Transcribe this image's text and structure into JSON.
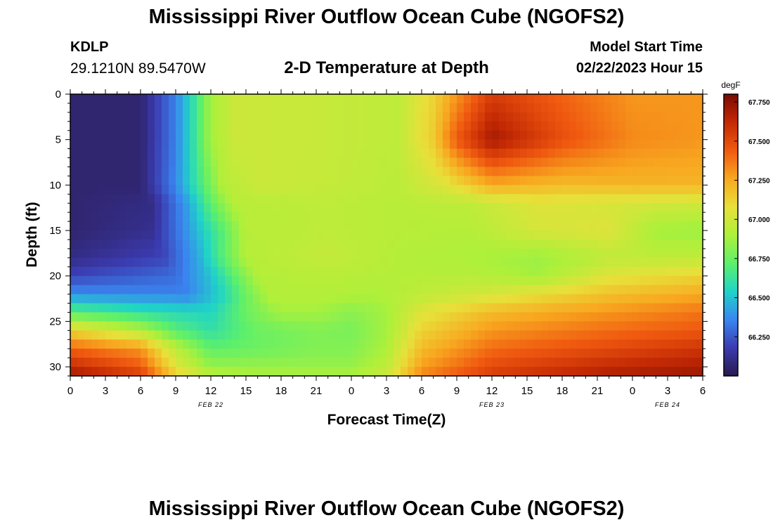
{
  "header": {
    "title": "Mississippi River Outflow Ocean Cube (NGOFS2)",
    "station_id": "KDLP",
    "station_coords": "29.1210N  89.5470W",
    "subtitle": "2-D Temperature at Depth",
    "model_start_label": "Model Start Time",
    "model_start_value": "02/22/2023 Hour 15"
  },
  "footer": {
    "title_repeat": "Mississippi River Outflow Ocean Cube (NGOFS2)"
  },
  "chart_data": {
    "type": "heatmap",
    "xlabel": "Forecast Time(Z)",
    "ylabel": "Depth (ft)",
    "x_unit": "hours from start",
    "xlim": [
      0,
      54
    ],
    "ylim": [
      0,
      31
    ],
    "y_inverted": true,
    "x_ticks": [
      {
        "h": 0,
        "label": "0"
      },
      {
        "h": 3,
        "label": "3"
      },
      {
        "h": 6,
        "label": "6"
      },
      {
        "h": 9,
        "label": "9"
      },
      {
        "h": 12,
        "label": "12"
      },
      {
        "h": 15,
        "label": "15"
      },
      {
        "h": 18,
        "label": "18"
      },
      {
        "h": 21,
        "label": "21"
      },
      {
        "h": 24,
        "label": "0"
      },
      {
        "h": 27,
        "label": "3"
      },
      {
        "h": 30,
        "label": "6"
      },
      {
        "h": 33,
        "label": "9"
      },
      {
        "h": 36,
        "label": "12"
      },
      {
        "h": 39,
        "label": "15"
      },
      {
        "h": 42,
        "label": "18"
      },
      {
        "h": 45,
        "label": "21"
      },
      {
        "h": 48,
        "label": "0"
      },
      {
        "h": 51,
        "label": "3"
      },
      {
        "h": 54,
        "label": "6"
      }
    ],
    "date_labels": [
      {
        "h": 12,
        "label": "FEB 22"
      },
      {
        "h": 36,
        "label": "FEB 23"
      },
      {
        "h": 51,
        "label": "FEB 24"
      }
    ],
    "y_ticks": [
      0,
      5,
      10,
      15,
      20,
      25,
      30
    ],
    "colorbar": {
      "unit": "degF",
      "min": 66.0,
      "max": 67.8,
      "tick_values": [
        66.25,
        66.5,
        66.75,
        67.0,
        67.25,
        67.5,
        67.75
      ],
      "tick_labels": [
        "66.250",
        "66.500",
        "66.750",
        "67.000",
        "67.250",
        "67.500",
        "67.750"
      ],
      "colors": [
        "#2a1a4e",
        "#3b3bb0",
        "#3a86f0",
        "#1fd4c8",
        "#5ef06a",
        "#aef03a",
        "#e8e03a",
        "#f8a820",
        "#f05a10",
        "#c42a04",
        "#7a0a02"
      ]
    },
    "grid_points": [
      [
        0,
        0,
        66.06
      ],
      [
        6,
        0,
        66.06
      ],
      [
        9,
        0,
        66.35
      ],
      [
        10.5,
        0,
        66.6
      ],
      [
        12,
        0,
        66.88
      ],
      [
        14,
        0,
        66.99
      ],
      [
        20,
        0,
        66.98
      ],
      [
        28,
        0,
        66.95
      ],
      [
        31,
        0,
        67.12
      ],
      [
        33,
        0,
        67.3
      ],
      [
        36,
        0,
        67.55
      ],
      [
        42,
        0,
        67.42
      ],
      [
        48,
        0,
        67.3
      ],
      [
        54,
        0,
        67.3
      ],
      [
        0,
        5,
        66.06
      ],
      [
        6,
        5,
        66.06
      ],
      [
        9,
        5,
        66.35
      ],
      [
        10.5,
        5,
        66.6
      ],
      [
        12,
        5,
        66.88
      ],
      [
        14,
        5,
        66.99
      ],
      [
        20,
        5,
        66.98
      ],
      [
        28,
        5,
        66.95
      ],
      [
        31,
        5,
        67.15
      ],
      [
        33,
        5,
        67.45
      ],
      [
        36,
        5,
        67.7
      ],
      [
        42,
        5,
        67.48
      ],
      [
        48,
        5,
        67.33
      ],
      [
        54,
        5,
        67.3
      ],
      [
        0,
        10,
        66.06
      ],
      [
        6,
        10,
        66.06
      ],
      [
        9,
        10,
        66.37
      ],
      [
        11,
        10,
        66.65
      ],
      [
        13,
        10,
        66.92
      ],
      [
        16,
        10,
        66.99
      ],
      [
        22,
        10,
        66.97
      ],
      [
        28,
        10,
        66.94
      ],
      [
        32,
        10,
        67.05
      ],
      [
        36,
        10,
        67.25
      ],
      [
        42,
        10,
        67.2
      ],
      [
        48,
        10,
        67.22
      ],
      [
        54,
        10,
        67.22
      ],
      [
        0,
        12,
        66.06
      ],
      [
        7,
        12,
        66.1
      ],
      [
        10,
        12,
        66.42
      ],
      [
        12,
        12,
        66.72
      ],
      [
        14,
        12,
        66.93
      ],
      [
        22,
        12,
        66.95
      ],
      [
        28,
        12,
        66.93
      ],
      [
        34,
        12,
        66.95
      ],
      [
        40,
        12,
        67.05
      ],
      [
        46,
        12,
        67.02
      ],
      [
        54,
        12,
        67.0
      ],
      [
        0,
        15,
        66.06
      ],
      [
        7,
        15,
        66.12
      ],
      [
        10,
        15,
        66.4
      ],
      [
        13,
        15,
        66.7
      ],
      [
        15,
        15,
        66.93
      ],
      [
        22,
        15,
        66.95
      ],
      [
        28,
        15,
        66.93
      ],
      [
        34,
        15,
        66.92
      ],
      [
        40,
        15,
        67.02
      ],
      [
        46,
        15,
        67.05
      ],
      [
        50,
        15,
        66.88
      ],
      [
        54,
        15,
        66.86
      ],
      [
        0,
        18,
        66.1
      ],
      [
        8,
        18,
        66.2
      ],
      [
        11,
        18,
        66.45
      ],
      [
        13,
        18,
        66.7
      ],
      [
        15,
        18,
        66.92
      ],
      [
        22,
        18,
        66.97
      ],
      [
        28,
        18,
        66.92
      ],
      [
        34,
        18,
        66.9
      ],
      [
        40,
        18,
        66.86
      ],
      [
        46,
        18,
        66.95
      ],
      [
        54,
        18,
        66.95
      ],
      [
        0,
        20,
        66.2
      ],
      [
        9,
        20,
        66.3
      ],
      [
        12,
        20,
        66.5
      ],
      [
        14,
        20,
        66.72
      ],
      [
        16,
        20,
        66.92
      ],
      [
        22,
        20,
        66.93
      ],
      [
        28,
        20,
        66.92
      ],
      [
        34,
        20,
        66.93
      ],
      [
        40,
        20,
        66.88
      ],
      [
        46,
        20,
        67.05
      ],
      [
        54,
        20,
        67.12
      ],
      [
        0,
        22,
        66.38
      ],
      [
        10,
        22,
        66.35
      ],
      [
        13,
        22,
        66.55
      ],
      [
        15,
        22,
        66.75
      ],
      [
        17,
        22,
        66.92
      ],
      [
        22,
        22,
        66.92
      ],
      [
        26,
        22,
        66.9
      ],
      [
        30,
        22,
        66.95
      ],
      [
        36,
        22,
        67.02
      ],
      [
        46,
        22,
        67.18
      ],
      [
        54,
        22,
        67.25
      ],
      [
        0,
        24,
        66.7
      ],
      [
        6,
        24,
        66.6
      ],
      [
        12,
        24,
        66.55
      ],
      [
        15,
        24,
        66.75
      ],
      [
        18,
        24,
        66.88
      ],
      [
        21,
        24,
        66.88
      ],
      [
        24,
        24,
        66.82
      ],
      [
        27,
        24,
        66.88
      ],
      [
        30,
        24,
        67.05
      ],
      [
        36,
        24,
        67.2
      ],
      [
        46,
        24,
        67.3
      ],
      [
        54,
        24,
        67.38
      ],
      [
        0,
        26,
        67.12
      ],
      [
        6,
        26,
        66.92
      ],
      [
        9,
        26,
        66.7
      ],
      [
        12,
        26,
        66.6
      ],
      [
        16,
        26,
        66.75
      ],
      [
        21,
        26,
        66.8
      ],
      [
        24,
        26,
        66.78
      ],
      [
        27,
        26,
        66.88
      ],
      [
        30,
        26,
        67.12
      ],
      [
        36,
        26,
        67.3
      ],
      [
        46,
        26,
        67.4
      ],
      [
        54,
        26,
        67.45
      ],
      [
        0,
        28,
        67.42
      ],
      [
        6,
        28,
        67.3
      ],
      [
        9,
        28,
        66.95
      ],
      [
        12,
        28,
        66.72
      ],
      [
        16,
        28,
        66.75
      ],
      [
        21,
        28,
        66.8
      ],
      [
        24,
        28,
        66.8
      ],
      [
        27,
        28,
        66.9
      ],
      [
        30,
        28,
        67.2
      ],
      [
        36,
        28,
        67.4
      ],
      [
        46,
        28,
        67.5
      ],
      [
        54,
        28,
        67.58
      ],
      [
        0,
        30,
        67.62
      ],
      [
        6,
        30,
        67.45
      ],
      [
        9,
        30,
        67.05
      ],
      [
        12,
        30,
        66.85
      ],
      [
        16,
        30,
        66.85
      ],
      [
        21,
        30,
        66.85
      ],
      [
        24,
        30,
        66.85
      ],
      [
        27,
        30,
        66.95
      ],
      [
        30,
        30,
        67.28
      ],
      [
        36,
        30,
        67.5
      ],
      [
        46,
        30,
        67.62
      ],
      [
        54,
        30,
        67.68
      ],
      [
        0,
        31,
        67.72
      ],
      [
        6,
        31,
        67.55
      ],
      [
        9,
        31,
        67.15
      ],
      [
        12,
        31,
        66.95
      ],
      [
        16,
        31,
        66.9
      ],
      [
        21,
        31,
        66.9
      ],
      [
        24,
        31,
        66.9
      ],
      [
        27,
        31,
        67.0
      ],
      [
        30,
        31,
        67.35
      ],
      [
        36,
        31,
        67.55
      ],
      [
        46,
        31,
        67.68
      ],
      [
        54,
        31,
        67.72
      ]
    ]
  }
}
